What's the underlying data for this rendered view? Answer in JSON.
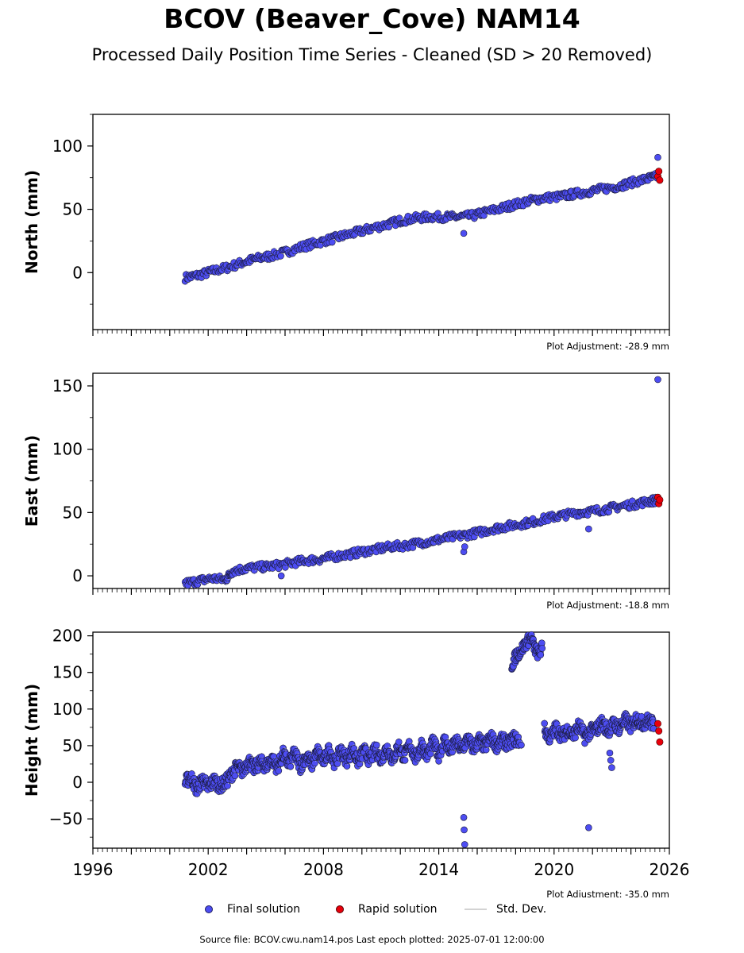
{
  "header": {
    "title": "BCOV (Beaver_Cove) NAM14",
    "subtitle": "Processed Daily Position Time Series - Cleaned (SD > 20 Removed)"
  },
  "colors": {
    "final": "#4d4df2",
    "rapid": "#e8000b",
    "std": "#cccccc"
  },
  "legend": {
    "final_label": "Final solution",
    "rapid_label": "Rapid solution",
    "std_label": "Std. Dev."
  },
  "footer": {
    "source": "Source file: BCOV.cwu.nam14.pos  Last epoch plotted: 2025-07-01 12:00:00"
  },
  "chart_data": [
    {
      "type": "scatter",
      "ylabel": "North (mm)",
      "adjustment": "Plot Adjustment: -28.9 mm",
      "xlim": [
        1996,
        2026
      ],
      "ylim": [
        -45,
        125
      ],
      "yticks": [
        0,
        50,
        100
      ],
      "xticklabels": [],
      "final": {
        "x": [
          2000.8,
          2001.5,
          2002.2,
          2003.0,
          2003.8,
          2004.5,
          2005.2,
          2006.0,
          2006.8,
          2007.5,
          2008.3,
          2009.0,
          2009.8,
          2010.5,
          2011.3,
          2012.0,
          2012.8,
          2013.5,
          2014.3,
          2015.0,
          2015.8,
          2016.5,
          2017.3,
          2018.0,
          2018.8,
          2019.5,
          2020.3,
          2021.0,
          2021.8,
          2022.5,
          2023.3,
          2024.0,
          2024.8,
          2025.4
        ],
        "y": [
          -4,
          -2,
          1,
          4,
          8,
          11,
          13,
          16,
          20,
          23,
          26,
          29,
          32,
          35,
          38,
          41,
          43,
          44,
          44,
          44,
          45,
          48,
          51,
          54,
          57,
          59,
          60,
          62,
          64,
          66,
          68,
          71,
          74,
          76
        ]
      },
      "rapid": {
        "x": [
          2025.4,
          2025.45,
          2025.5
        ],
        "y": [
          76,
          80,
          73
        ]
      },
      "outliers": {
        "x": [
          2015.3,
          2025.4
        ],
        "y": [
          31,
          91
        ]
      }
    },
    {
      "type": "scatter",
      "ylabel": "East (mm)",
      "adjustment": "Plot Adjustment: -18.8 mm",
      "xlim": [
        1996,
        2026
      ],
      "ylim": [
        -10,
        160
      ],
      "yticks": [
        0,
        50,
        100,
        150
      ],
      "xticklabels": [],
      "final": {
        "x": [
          2000.8,
          2001.5,
          2002.2,
          2002.9,
          2003.3,
          2004.0,
          2004.8,
          2005.5,
          2006.3,
          2007.0,
          2007.8,
          2008.5,
          2009.3,
          2010.0,
          2010.8,
          2011.5,
          2012.3,
          2013.0,
          2013.8,
          2014.5,
          2015.3,
          2016.0,
          2016.8,
          2017.5,
          2018.3,
          2019.0,
          2019.8,
          2020.5,
          2021.3,
          2022.0,
          2022.8,
          2023.5,
          2024.3,
          2025.0,
          2025.4
        ],
        "y": [
          -6,
          -4,
          -2,
          -3,
          4,
          6,
          7,
          8,
          10,
          12,
          13,
          15,
          17,
          19,
          21,
          23,
          24,
          26,
          28,
          30,
          32,
          34,
          37,
          39,
          41,
          43,
          46,
          48,
          50,
          51,
          53,
          55,
          57,
          59,
          60
        ]
      },
      "rapid": {
        "x": [
          2025.4,
          2025.45,
          2025.5
        ],
        "y": [
          62,
          57,
          60
        ]
      },
      "outliers": {
        "x": [
          2015.3,
          2015.35,
          2021.8,
          2005.8,
          2025.4
        ],
        "y": [
          19,
          23,
          37,
          0,
          155
        ]
      }
    },
    {
      "type": "scatter",
      "ylabel": "Height (mm)",
      "adjustment": "Plot Adjustment: -35.0 mm",
      "xlim": [
        1996,
        2026
      ],
      "ylim": [
        -90,
        205
      ],
      "yticks": [
        -50,
        0,
        50,
        100,
        150,
        200
      ],
      "xticklabels": [
        "1996",
        "2002",
        "2008",
        "2014",
        "2020",
        "2026"
      ],
      "xticks": [
        1996,
        2002,
        2008,
        2014,
        2020,
        2026
      ],
      "final": {
        "x": [
          2000.8,
          2001.1,
          2001.4,
          2001.7,
          2002.0,
          2002.3,
          2002.6,
          2002.9,
          2003.2,
          2003.5,
          2003.8,
          2004.1,
          2004.4,
          2004.7,
          2005.0,
          2005.3,
          2005.6,
          2005.9,
          2006.2,
          2006.5,
          2006.8,
          2007.1,
          2007.4,
          2007.7,
          2008.0,
          2008.3,
          2008.6,
          2008.9,
          2009.2,
          2009.5,
          2009.8,
          2010.1,
          2010.4,
          2010.7,
          2011.0,
          2011.3,
          2011.6,
          2011.9,
          2012.2,
          2012.5,
          2012.8,
          2013.1,
          2013.4,
          2013.7,
          2014.0,
          2014.3,
          2014.6,
          2014.9,
          2015.2,
          2015.5,
          2015.8,
          2016.1,
          2016.4,
          2016.7,
          2017.0,
          2017.3,
          2017.6,
          2017.9,
          2018.2,
          2019.5,
          2019.8,
          2020.1,
          2020.4,
          2020.7,
          2021.0,
          2021.3,
          2021.6,
          2021.9,
          2022.2,
          2022.5,
          2022.8,
          2023.1,
          2023.4,
          2023.7,
          2024.0,
          2024.3,
          2024.6,
          2024.9,
          2025.2
        ],
        "y": [
          0,
          8,
          -10,
          5,
          -8,
          3,
          -5,
          0,
          10,
          22,
          15,
          30,
          18,
          28,
          22,
          32,
          20,
          38,
          25,
          40,
          22,
          36,
          25,
          42,
          28,
          45,
          26,
          44,
          30,
          46,
          28,
          44,
          30,
          45,
          32,
          48,
          30,
          50,
          34,
          52,
          32,
          52,
          36,
          55,
          38,
          58,
          42,
          56,
          44,
          60,
          46,
          58,
          48,
          62,
          50,
          58,
          52,
          60,
          56,
          72,
          60,
          75,
          62,
          72,
          64,
          78,
          62,
          70,
          72,
          82,
          70,
          80,
          74,
          86,
          76,
          88,
          80,
          85,
          78
        ],
        "hump_x": [
          2017.8,
          2018.0,
          2018.2,
          2018.4,
          2018.6,
          2018.8,
          2019.0,
          2019.2,
          2019.4
        ],
        "hump_y": [
          160,
          172,
          178,
          185,
          192,
          198,
          182,
          175,
          185
        ]
      },
      "rapid": {
        "x": [
          2025.4,
          2025.45,
          2025.5
        ],
        "y": [
          80,
          70,
          55
        ]
      },
      "outliers": {
        "x": [
          2015.3,
          2015.32,
          2015.35,
          2021.8,
          2022.9,
          2022.95,
          2023.0
        ],
        "y": [
          -48,
          -65,
          -85,
          -62,
          40,
          30,
          20
        ]
      }
    }
  ]
}
